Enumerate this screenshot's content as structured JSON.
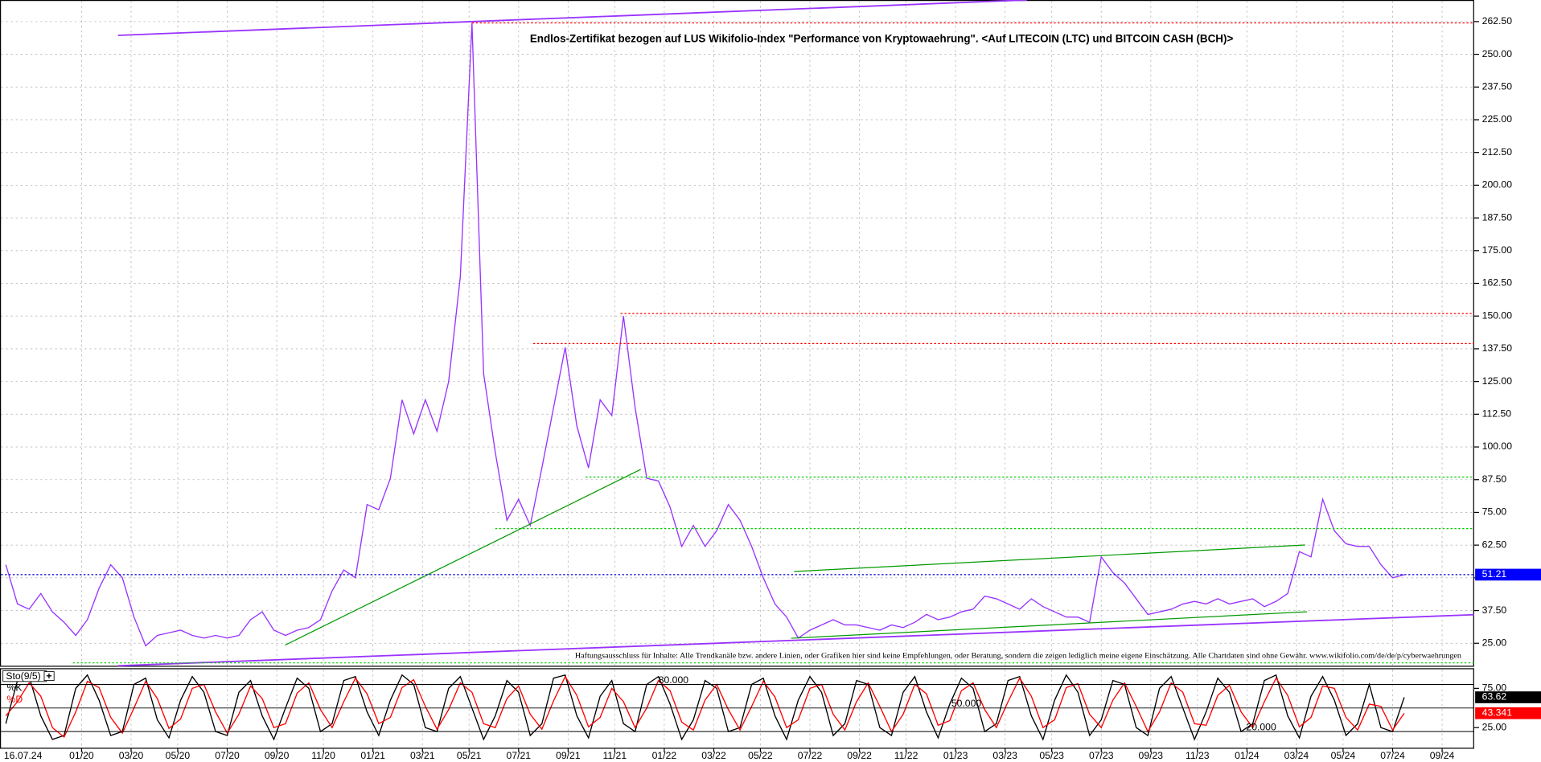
{
  "chart_data": [
    {
      "type": "line",
      "title": "Endlos-Zertifikat bezogen auf LUS Wikifolio-Index \"Performance von Kryptowaehrung\". <Auf LITECOIN (LTC) und BITCOIN CASH (BCH)>",
      "note": "Haftungsausschluss für Inhalte: Alle Trendkanäle bzw. andere Linien, oder Grafiken hier sind keine Empfehlungen, oder Beratung, sondern die zeigen lediglich meine eigene Einschätzung. Alle Chartdaten sind ohne Gewähr.  www.wikifolio.com/de/de/p/cyberwaehrungen",
      "date": "16.07.24",
      "x": [
        2019.74,
        2019.78,
        2019.82,
        2019.86,
        2019.9,
        2019.94,
        2019.98,
        2020.02,
        2020.06,
        2020.1,
        2020.14,
        2020.18,
        2020.22,
        2020.26,
        2020.3,
        2020.34,
        2020.38,
        2020.42,
        2020.46,
        2020.5,
        2020.54,
        2020.58,
        2020.62,
        2020.66,
        2020.7,
        2020.74,
        2020.78,
        2020.82,
        2020.86,
        2020.9,
        2020.94,
        2020.98,
        2021.02,
        2021.06,
        2021.1,
        2021.14,
        2021.18,
        2021.22,
        2021.26,
        2021.3,
        2021.34,
        2021.38,
        2021.42,
        2021.46,
        2021.5,
        2021.54,
        2021.58,
        2021.62,
        2021.66,
        2021.7,
        2021.74,
        2021.78,
        2021.82,
        2021.86,
        2021.9,
        2021.94,
        2021.98,
        2022.02,
        2022.06,
        2022.1,
        2022.14,
        2022.18,
        2022.22,
        2022.26,
        2022.3,
        2022.34,
        2022.38,
        2022.42,
        2022.46,
        2022.5,
        2022.54,
        2022.58,
        2022.62,
        2022.66,
        2022.7,
        2022.74,
        2022.78,
        2022.82,
        2022.86,
        2022.9,
        2022.94,
        2022.98,
        2023.02,
        2023.06,
        2023.1,
        2023.14,
        2023.18,
        2023.22,
        2023.26,
        2023.3,
        2023.34,
        2023.38,
        2023.42,
        2023.46,
        2023.5,
        2023.54,
        2023.58,
        2023.62,
        2023.66,
        2023.7,
        2023.74,
        2023.78,
        2023.82,
        2023.86,
        2023.9,
        2023.94,
        2023.98,
        2024.02,
        2024.06,
        2024.1,
        2024.14,
        2024.18,
        2024.22,
        2024.26,
        2024.3,
        2024.34,
        2024.38,
        2024.42,
        2024.46,
        2024.5,
        2024.54
      ],
      "series": [
        {
          "color": "#9933ff",
          "values": [
            55,
            40,
            38,
            44,
            37,
            33,
            28,
            34,
            46,
            55,
            50,
            35,
            24,
            28,
            29,
            30,
            28,
            27,
            28,
            27,
            28,
            34,
            37,
            30,
            28,
            30,
            31,
            34,
            45,
            53,
            50,
            78,
            76,
            88,
            118,
            105,
            118,
            106,
            125,
            165,
            262,
            128,
            98,
            72,
            80,
            70,
            92,
            115,
            138,
            108,
            92,
            118,
            112,
            150,
            115,
            88,
            87,
            77,
            62,
            70,
            62,
            68,
            78,
            72,
            62,
            50,
            40,
            35,
            27,
            30,
            32,
            34,
            32,
            32,
            31,
            30,
            32,
            31,
            33,
            36,
            34,
            35,
            37,
            38,
            43,
            42,
            40,
            38,
            42,
            39,
            37,
            35,
            35,
            33,
            58,
            52,
            48,
            42,
            36,
            37,
            38,
            40,
            41,
            40,
            42,
            40,
            41,
            42,
            39,
            41,
            44,
            60,
            58,
            80,
            68,
            63,
            62,
            62,
            55,
            50,
            51.21
          ]
        }
      ],
      "levels": [
        {
          "value": 262,
          "color": "#ff0000",
          "from": 2021.34
        },
        {
          "value": 151,
          "color": "#ff0000",
          "from": 2021.85
        },
        {
          "value": 139.5,
          "color": "#ff0000",
          "from": 2021.55
        },
        {
          "value": 88.5,
          "color": "#00cc00",
          "from": 2021.73
        },
        {
          "value": 68.8,
          "color": "#00cc00",
          "from": 2021.42
        },
        {
          "value": 17.5,
          "color": "#00cc00",
          "from": 2019.97
        }
      ],
      "xlim": [
        2019.72,
        2024.78
      ],
      "xticks": [
        {
          "value": 2020,
          "label": "01/20"
        },
        {
          "value": 2020.17,
          "label": "03/20"
        },
        {
          "value": 2020.33,
          "label": "05/20"
        },
        {
          "value": 2020.5,
          "label": "07/20"
        },
        {
          "value": 2020.67,
          "label": "09/20"
        },
        {
          "value": 2020.83,
          "label": "11/20"
        },
        {
          "value": 2021,
          "label": "01/21"
        },
        {
          "value": 2021.17,
          "label": "03/21"
        },
        {
          "value": 2021.33,
          "label": "05/21"
        },
        {
          "value": 2021.5,
          "label": "07/21"
        },
        {
          "value": 2021.67,
          "label": "09/21"
        },
        {
          "value": 2021.83,
          "label": "11/21"
        },
        {
          "value": 2022,
          "label": "01/22"
        },
        {
          "value": 2022.17,
          "label": "03/22"
        },
        {
          "value": 2022.33,
          "label": "05/22"
        },
        {
          "value": 2022.5,
          "label": "07/22"
        },
        {
          "value": 2022.67,
          "label": "09/22"
        },
        {
          "value": 2022.83,
          "label": "11/22"
        },
        {
          "value": 2023,
          "label": "01/23"
        },
        {
          "value": 2023.17,
          "label": "03/23"
        },
        {
          "value": 2023.33,
          "label": "05/23"
        },
        {
          "value": 2023.5,
          "label": "07/23"
        },
        {
          "value": 2023.67,
          "label": "09/23"
        },
        {
          "value": 2023.83,
          "label": "11/23"
        },
        {
          "value": 2024,
          "label": "01/24"
        },
        {
          "value": 2024.17,
          "label": "03/24"
        },
        {
          "value": 2024.33,
          "label": "05/24"
        },
        {
          "value": 2024.5,
          "label": "07/24"
        },
        {
          "value": 2024.67,
          "label": "09/24"
        }
      ],
      "ylim": [
        16.4,
        270.75
      ],
      "yticks": [
        {
          "value": 25,
          "label": "25.00"
        },
        {
          "value": 37.5,
          "label": "37.50"
        },
        {
          "value": 50,
          "label": "50.00"
        },
        {
          "value": 62.5,
          "label": "62.50"
        },
        {
          "value": 75,
          "label": "75.00"
        },
        {
          "value": 87.5,
          "label": "87.50"
        },
        {
          "value": 100,
          "label": "100.00"
        },
        {
          "value": 112.5,
          "label": "112.50"
        },
        {
          "value": 125,
          "label": "125.00"
        },
        {
          "value": 137.5,
          "label": "137.50"
        },
        {
          "value": 150,
          "label": "150.00"
        },
        {
          "value": 162.5,
          "label": "162.50"
        },
        {
          "value": 175,
          "label": "175.00"
        },
        {
          "value": 187.5,
          "label": "187.50"
        },
        {
          "value": 200,
          "label": "200.00"
        },
        {
          "value": 212.5,
          "label": "212.50"
        },
        {
          "value": 225,
          "label": "225.00"
        },
        {
          "value": 237.5,
          "label": "237.50"
        },
        {
          "value": 250,
          "label": "250.00"
        },
        {
          "value": 262.5,
          "label": "262.50"
        }
      ],
      "grid": true
    },
    {
      "type": "line",
      "title": "Sto(9/5)",
      "series": [
        {
          "name": "%K",
          "color": "#000000",
          "values": [
            30,
            85,
            90,
            40,
            10,
            15,
            75,
            92,
            60,
            15,
            20,
            80,
            88,
            35,
            12,
            60,
            90,
            70,
            20,
            15,
            70,
            85,
            40,
            10,
            50,
            88,
            75,
            20,
            30,
            85,
            90,
            45,
            15,
            60,
            92,
            80,
            25,
            20,
            75,
            90,
            50,
            10,
            40,
            85,
            70,
            15,
            30,
            88,
            92,
            40,
            12,
            65,
            85,
            30,
            20,
            80,
            90,
            55,
            10,
            35,
            85,
            75,
            20,
            25,
            80,
            88,
            40,
            10,
            60,
            90,
            70,
            15,
            30,
            85,
            80,
            25,
            15,
            70,
            90,
            45,
            12,
            55,
            88,
            75,
            20,
            30,
            85,
            90,
            40,
            10,
            60,
            92,
            70,
            15,
            35,
            85,
            80,
            25,
            15,
            75,
            90,
            50,
            10,
            45,
            88,
            70,
            20,
            30,
            85,
            92,
            40,
            12,
            65,
            90,
            60,
            15,
            30,
            80,
            25,
            20,
            63.62
          ]
        },
        {
          "name": "%D",
          "color": "#ff0000",
          "values": [
            40,
            58,
            82,
            65,
            25,
            13,
            45,
            84,
            76,
            38,
            18,
            50,
            84,
            62,
            24,
            36,
            75,
            80,
            45,
            18,
            42,
            78,
            62,
            25,
            30,
            69,
            82,
            48,
            25,
            58,
            88,
            68,
            30,
            38,
            76,
            86,
            52,
            23,
            48,
            82,
            70,
            30,
            25,
            62,
            78,
            42,
            23,
            59,
            90,
            66,
            26,
            38,
            75,
            58,
            25,
            50,
            85,
            72,
            32,
            22,
            60,
            80,
            48,
            22,
            52,
            84,
            64,
            25,
            35,
            75,
            80,
            42,
            22,
            58,
            82,
            52,
            20,
            42,
            80,
            68,
            28,
            34,
            72,
            82,
            48,
            25,
            58,
            88,
            65,
            25,
            35,
            76,
            81,
            42,
            25,
            60,
            82,
            52,
            20,
            45,
            82,
            70,
            30,
            28,
            66,
            79,
            45,
            25,
            58,
            88,
            66,
            26,
            38,
            78,
            75,
            38,
            22,
            55,
            52,
            22,
            43.341
          ]
        }
      ],
      "levels": [
        {
          "value": 80,
          "label": "80.000"
        },
        {
          "value": 50,
          "label": "50.000"
        },
        {
          "value": 20,
          "label": "20.000"
        }
      ],
      "ylim": [
        0,
        100
      ],
      "yticks": [
        {
          "value": 75,
          "label": "75.00"
        },
        {
          "value": 25,
          "label": "25.00"
        }
      ]
    }
  ]
}
